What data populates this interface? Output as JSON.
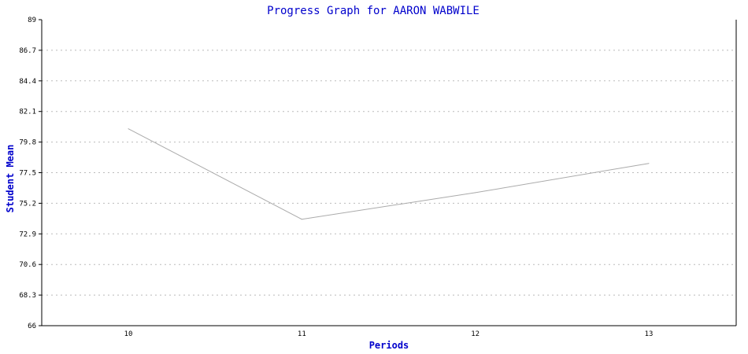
{
  "chart_data": {
    "type": "line",
    "title": "Progress Graph for AARON WABWILE",
    "xlabel": "Periods",
    "ylabel": "Student Mean",
    "categories": [
      "10",
      "11",
      "12",
      "13"
    ],
    "series": [
      {
        "values": [
          80.8,
          74.0,
          76.0,
          78.2
        ]
      }
    ],
    "ylim": [
      66,
      89
    ],
    "yticks": [
      "66",
      "68.3",
      "70.6",
      "72.9",
      "75.2",
      "77.5",
      "79.8",
      "82.1",
      "84.4",
      "86.7",
      "89"
    ],
    "grid": true,
    "colors": {
      "title": "#0000cc",
      "line": "#aaaaaa",
      "grid": "#bbbbbb",
      "axis": "#000000"
    }
  }
}
